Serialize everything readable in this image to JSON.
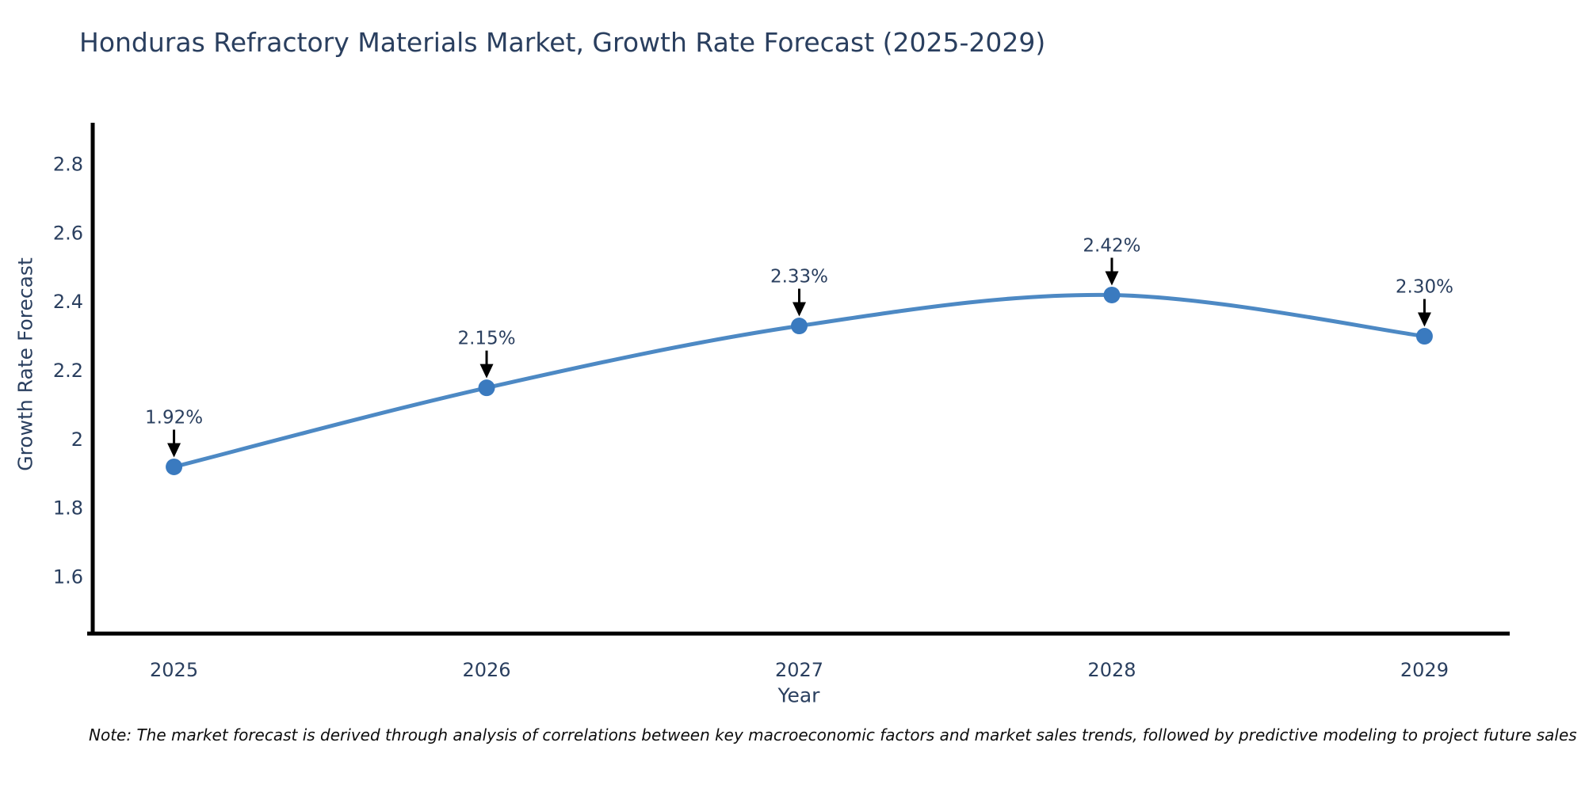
{
  "title": "Honduras Refractory Materials Market, Growth Rate Forecast (2025-2029)",
  "note": "Note: The market forecast is derived through analysis of correlations between key macroeconomic factors and market sales trends, followed by predictive modeling to project future sales",
  "colors": {
    "title_text": "#2a3f5f",
    "tick_text": "#2a3f5f",
    "annotation_text": "#2a3f5f",
    "axis_line": "#000000",
    "series_line": "#4d89c4",
    "marker_fill": "#3a7abf",
    "arrow": "#000000",
    "background": "#ffffff"
  },
  "chart_data": {
    "type": "line",
    "title": "Honduras Refractory Materials Market, Growth Rate Forecast (2025-2029)",
    "x": [
      2025,
      2026,
      2027,
      2028,
      2029
    ],
    "series": [
      {
        "name": "Growth Rate Forecast",
        "values": [
          1.92,
          2.15,
          2.33,
          2.42,
          2.3
        ]
      }
    ],
    "point_labels": [
      "1.92%",
      "2.15%",
      "2.33%",
      "2.42%",
      "2.30%"
    ],
    "xlabel": "Year",
    "ylabel": "Growth Rate Forecast",
    "xtick_labels": [
      "2025",
      "2026",
      "2027",
      "2028",
      "2029"
    ],
    "yticks": [
      1.6,
      1.8,
      2.0,
      2.2,
      2.4,
      2.6,
      2.8
    ],
    "ytick_labels": [
      "1.6",
      "1.8",
      "2",
      "2.2",
      "2.4",
      "2.6",
      "2.8"
    ],
    "xlim": [
      2024.74,
      2029.26
    ],
    "ylim": [
      1.435,
      2.921
    ],
    "grid": false,
    "legend": false,
    "line_shape": "spline",
    "markers": true,
    "annotation_arrows": true
  }
}
